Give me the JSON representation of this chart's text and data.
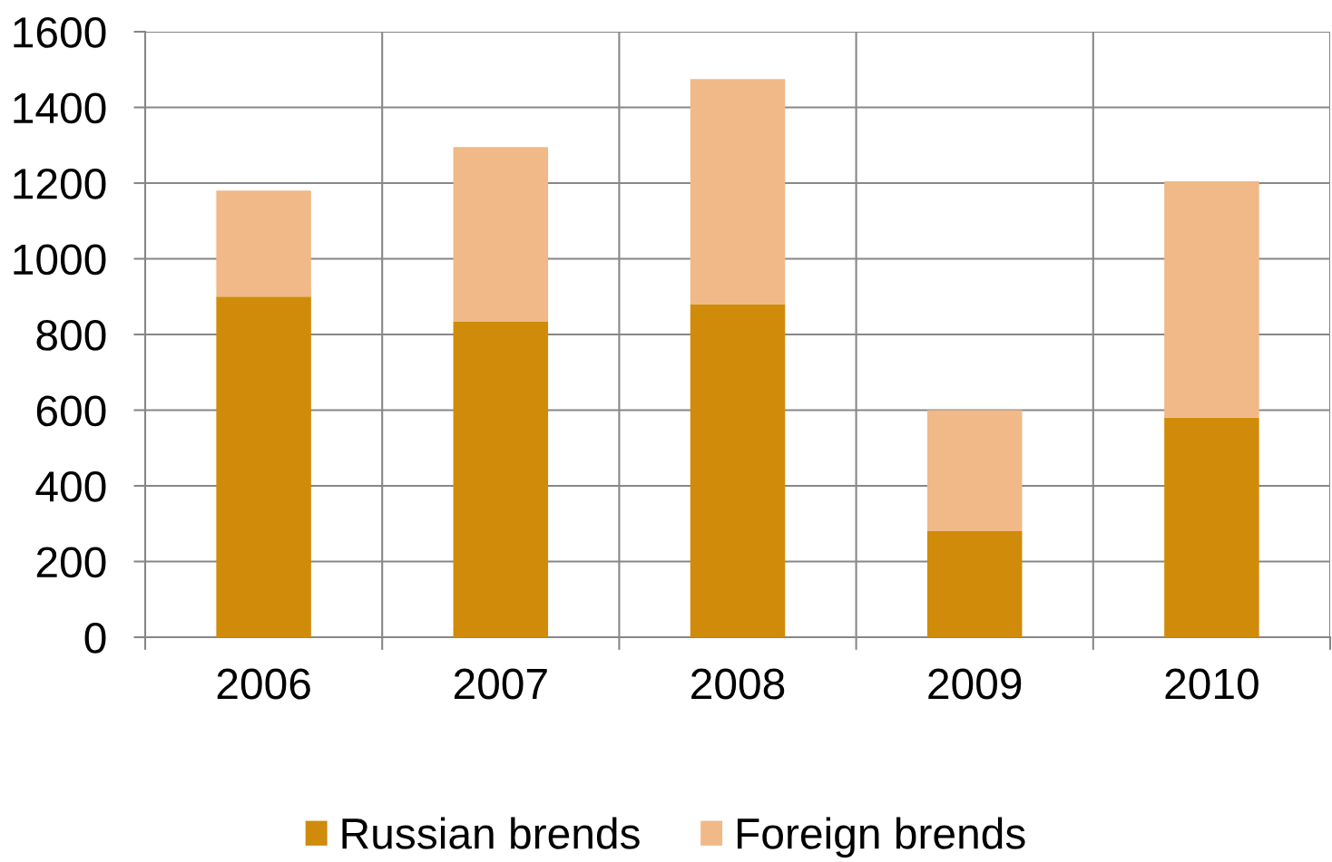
{
  "chart_data": {
    "type": "bar",
    "stacked": true,
    "categories": [
      "2006",
      "2007",
      "2008",
      "2009",
      "2010"
    ],
    "series": [
      {
        "name": "Russian brends",
        "color": "#d08b0a",
        "values": [
          900,
          835,
          880,
          280,
          580
        ]
      },
      {
        "name": "Foreign brends",
        "color": "#f0b987",
        "values": [
          280,
          460,
          595,
          320,
          625
        ]
      }
    ],
    "ylim": [
      0,
      1600
    ],
    "yticks": [
      0,
      200,
      400,
      600,
      800,
      1000,
      1200,
      1400,
      1600
    ],
    "grid": true,
    "legend": "bottom"
  }
}
